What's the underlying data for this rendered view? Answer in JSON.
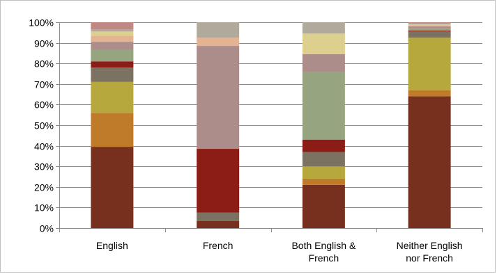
{
  "chart_data": {
    "type": "bar",
    "stacked": true,
    "categories": [
      "English",
      "French",
      "Both English & French",
      "Neither English nor French"
    ],
    "category_lines": [
      [
        "English"
      ],
      [
        "French"
      ],
      [
        "Both English &",
        "French"
      ],
      [
        "Neither English",
        "nor French"
      ]
    ],
    "ylim": [
      0,
      100
    ],
    "yticks": [
      0,
      10,
      20,
      30,
      40,
      50,
      60,
      70,
      80,
      90,
      100
    ],
    "ytick_labels": [
      "0%",
      "10%",
      "20%",
      "30%",
      "40%",
      "50%",
      "60%",
      "70%",
      "80%",
      "90%",
      "100%"
    ],
    "grid": true,
    "legend": "none",
    "series": [
      {
        "color": "#77301e",
        "values": [
          39.5,
          3.5,
          21.0,
          64.0
        ]
      },
      {
        "color": "#bf7a2a",
        "values": [
          16.5,
          0.0,
          3.0,
          3.0
        ]
      },
      {
        "color": "#b7a83e",
        "values": [
          15.0,
          0.0,
          6.0,
          25.5
        ]
      },
      {
        "color": "#7b7262",
        "values": [
          7.0,
          4.0,
          7.0,
          3.0
        ]
      },
      {
        "color": "#8b1c16",
        "values": [
          3.0,
          31.0,
          6.0,
          0.5
        ]
      },
      {
        "color": "#97a480",
        "values": [
          5.5,
          0.0,
          33.0,
          1.0
        ]
      },
      {
        "color": "#ad8d89",
        "values": [
          4.0,
          50.0,
          8.5,
          1.0
        ]
      },
      {
        "color": "#e4b391",
        "values": [
          3.0,
          4.0,
          0.0,
          0.5
        ]
      },
      {
        "color": "#ddd08f",
        "values": [
          2.0,
          0.0,
          10.0,
          0.5
        ]
      },
      {
        "color": "#b0aa9c",
        "values": [
          1.0,
          7.5,
          5.5,
          0.5
        ]
      },
      {
        "color": "#c08882",
        "values": [
          3.5,
          0.0,
          0.0,
          0.5
        ]
      }
    ]
  }
}
